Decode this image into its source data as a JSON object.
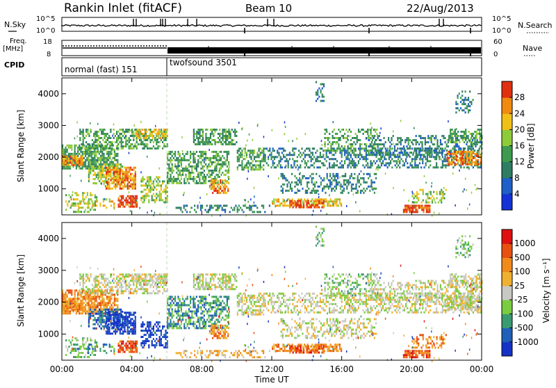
{
  "header": {
    "title": "Rankin Inlet (fitACF)",
    "beam": "Beam 10",
    "date": "22/Aug/2013"
  },
  "strip": {
    "nsky_label": "N.Sky",
    "nsky_ticks": [
      "10^5",
      "10^0"
    ],
    "nsearch_label": "N.Search",
    "nsearch_ticks": [
      "10^5",
      "10^0"
    ],
    "freq_label": "Freq.",
    "freq_unit": "[MHz]",
    "freq_ticks": [
      "18",
      "8"
    ],
    "nave_label": "Nave",
    "nave_ticks": [
      "60",
      "0"
    ],
    "cpid_label": "CPID",
    "cpid_segments": [
      "normal (fast) 151",
      "twofsound 3501"
    ]
  },
  "chart_data": [
    {
      "type": "heatmap",
      "quantity": "Power",
      "ylabel": "Slant Range [km]",
      "ylim": [
        180,
        4500
      ],
      "yticks": [
        "1000",
        "2000",
        "3000",
        "4000"
      ],
      "xlim_hours": [
        0,
        24
      ],
      "colorbar": {
        "label": "Power [dB]",
        "ticks": [
          "4",
          "8",
          "12",
          "16",
          "20",
          "24",
          "28"
        ],
        "colors": [
          "#1432d8",
          "#1e5fc8",
          "#2e7d62",
          "#3e9a4e",
          "#8ecb3a",
          "#f0c018",
          "#f08a10",
          "#e03010"
        ]
      }
    },
    {
      "type": "heatmap",
      "quantity": "Velocity",
      "ylabel": "Slant Range [km]",
      "ylim": [
        180,
        4500
      ],
      "yticks": [
        "1000",
        "2000",
        "3000",
        "4000"
      ],
      "xlim_hours": [
        0,
        24
      ],
      "xticks": [
        "00:00",
        "04:00",
        "08:00",
        "12:00",
        "16:00",
        "20:00",
        "00:00"
      ],
      "xlabel": "Time UT",
      "colorbar": {
        "label": "Velocity [m s⁻¹]",
        "ticks": [
          "1000",
          "500",
          "100",
          "25",
          "-25",
          "-100",
          "-500",
          "-1000"
        ],
        "colors": [
          "#1432c8",
          "#2060b8",
          "#3a9a70",
          "#7acc40",
          "#c8c8c4",
          "#f0b030",
          "#f08a18",
          "#e85010",
          "#e01010"
        ]
      }
    }
  ]
}
